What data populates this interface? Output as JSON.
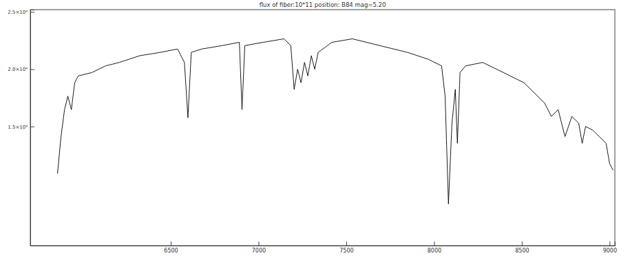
{
  "chart_data": {
    "type": "line",
    "title": "flux of fiber:10*11   position: B84    mag=5.20",
    "x": [
      5855,
      5875,
      5895,
      5914,
      5934,
      5953,
      5973,
      6051,
      6129,
      6207,
      6324,
      6441,
      6539,
      6578,
      6598,
      6617,
      6676,
      6793,
      6891,
      6906,
      6922,
      7027,
      7145,
      7184,
      7203,
      7223,
      7242,
      7262,
      7281,
      7301,
      7320,
      7340,
      7418,
      7535,
      7691,
      7848,
      7965,
      8043,
      8063,
      8082,
      8102,
      8121,
      8133,
      8148,
      8180,
      8277,
      8395,
      8512,
      8629,
      8668,
      8707,
      8746,
      8785,
      8824,
      8844,
      8863,
      8902,
      8941,
      8980,
      9000,
      9020
    ],
    "values": [
      10880,
      14120,
      16470,
      17650,
      16470,
      18820,
      19410,
      19710,
      20290,
      20590,
      21180,
      21470,
      21760,
      20590,
      15760,
      21470,
      21760,
      22060,
      22350,
      16470,
      22060,
      22350,
      22650,
      22060,
      18240,
      20000,
      18820,
      20590,
      19410,
      21180,
      20000,
      21470,
      22350,
      22650,
      22060,
      21470,
      20880,
      20290,
      17650,
      8240,
      15290,
      18240,
      13530,
      19710,
      20290,
      20590,
      19710,
      18820,
      17060,
      15880,
      16470,
      14120,
      15880,
      15290,
      13530,
      15000,
      14700,
      14120,
      13530,
      11760,
      11180
    ],
    "color": "#000000",
    "line_style": "solid",
    "grid": false,
    "xlim": [
      5700,
      9030
    ],
    "xticks": [
      6500,
      7000,
      7500,
      8000,
      8500,
      9000
    ],
    "ylim": [
      4600,
      25200
    ],
    "yticks": [
      {
        "value": 15000,
        "label": "1.5×10⁴"
      },
      {
        "value": 20000,
        "label": "2.0×10⁴"
      },
      {
        "value": 25000,
        "label": "2.5×10⁴"
      }
    ]
  }
}
